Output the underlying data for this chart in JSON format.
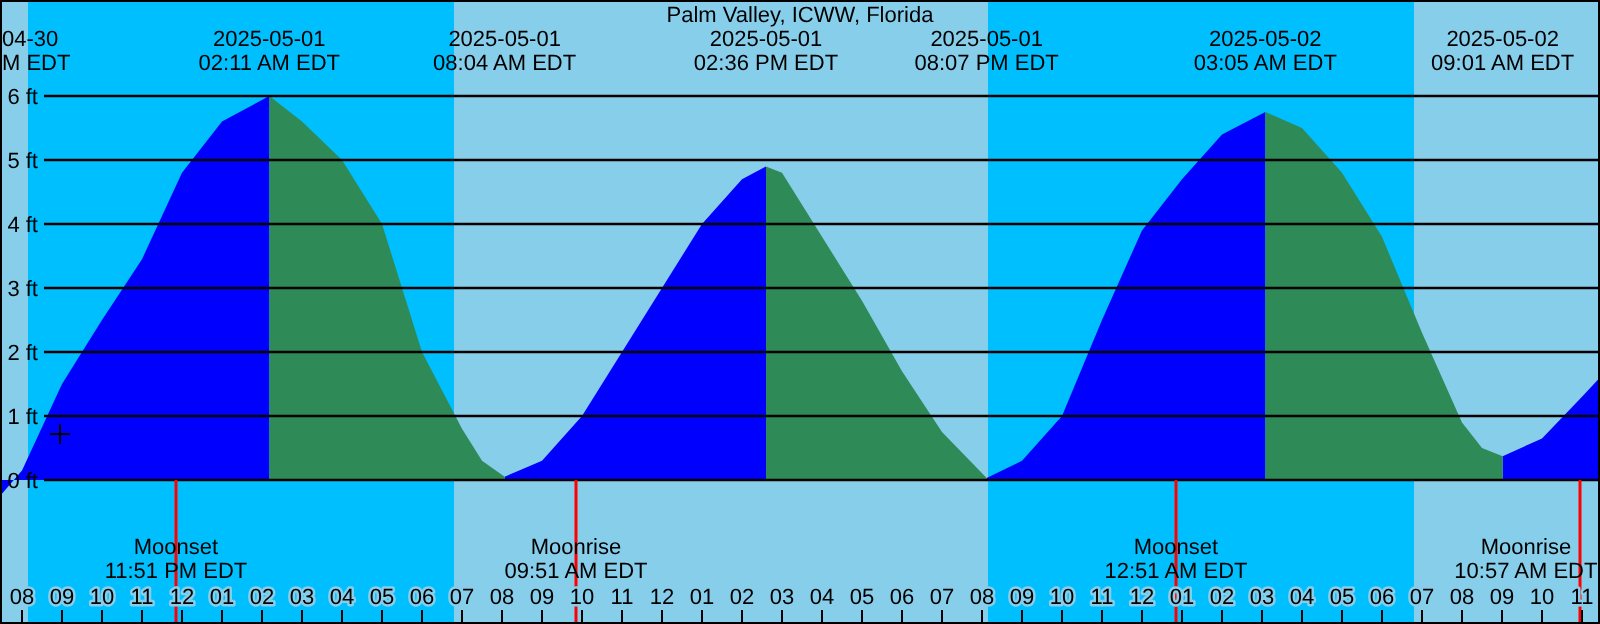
{
  "chart_data": {
    "type": "area",
    "title": "Palm Valley, ICWW, Florida",
    "x": [
      "2025-04-30T19:27",
      "2025-04-30T20:00",
      "2025-04-30T21:00",
      "2025-04-30T22:00",
      "2025-04-30T23:00",
      "2025-05-01T00:00",
      "2025-05-01T01:00",
      "2025-05-01T02:11",
      "2025-05-01T03:00",
      "2025-05-01T04:00",
      "2025-05-01T05:00",
      "2025-05-01T06:00",
      "2025-05-01T07:00",
      "2025-05-01T07:30",
      "2025-05-01T08:04",
      "2025-05-01T09:00",
      "2025-05-01T10:00",
      "2025-05-01T11:00",
      "2025-05-01T12:00",
      "2025-05-01T13:00",
      "2025-05-01T14:00",
      "2025-05-01T14:36",
      "2025-05-01T15:00",
      "2025-05-01T16:00",
      "2025-05-01T17:00",
      "2025-05-01T18:00",
      "2025-05-01T19:00",
      "2025-05-01T20:07",
      "2025-05-01T21:00",
      "2025-05-01T22:00",
      "2025-05-01T23:00",
      "2025-05-02T00:00",
      "2025-05-02T01:00",
      "2025-05-02T02:00",
      "2025-05-02T03:05",
      "2025-05-02T04:00",
      "2025-05-02T05:00",
      "2025-05-02T06:00",
      "2025-05-02T07:00",
      "2025-05-02T08:00",
      "2025-05-02T08:30",
      "2025-05-02T09:01",
      "2025-05-02T10:00",
      "2025-05-02T11:00",
      "2025-05-02T11:27"
    ],
    "series": [
      {
        "color": "#0000ff",
        "values": [
          -0.25,
          0.15,
          1.5,
          2.5,
          3.45,
          4.8,
          5.6,
          6.0,
          null,
          null,
          null,
          null,
          null,
          null,
          0.05,
          0.3,
          1.0,
          2.0,
          3.0,
          4.0,
          4.7,
          4.9,
          null,
          null,
          null,
          null,
          null,
          0.03,
          0.3,
          1.0,
          2.5,
          3.9,
          4.7,
          5.4,
          5.75,
          null,
          null,
          null,
          null,
          null,
          null,
          0.37,
          0.65,
          1.3,
          1.6
        ]
      },
      {
        "color": "#2e8b57",
        "values": [
          null,
          null,
          null,
          null,
          null,
          null,
          null,
          6.0,
          5.6,
          5.0,
          4.0,
          2.0,
          0.8,
          0.3,
          0.05,
          null,
          null,
          null,
          null,
          null,
          null,
          4.9,
          4.8,
          3.8,
          2.8,
          1.7,
          0.75,
          0.03,
          null,
          null,
          null,
          null,
          null,
          null,
          5.75,
          5.5,
          4.8,
          3.8,
          2.3,
          0.9,
          0.5,
          0.37,
          null,
          null,
          null
        ]
      }
    ],
    "xlim": [
      "2025-04-30T19:27",
      "2025-05-02T11:27"
    ],
    "xticks": [
      {
        "value": "2025-04-30T20:00",
        "label": "08"
      },
      {
        "value": "2025-04-30T21:00",
        "label": "09"
      },
      {
        "value": "2025-04-30T22:00",
        "label": "10"
      },
      {
        "value": "2025-04-30T23:00",
        "label": "11"
      },
      {
        "value": "2025-05-01T00:00",
        "label": "12"
      },
      {
        "value": "2025-05-01T01:00",
        "label": "01"
      },
      {
        "value": "2025-05-01T02:00",
        "label": "02"
      },
      {
        "value": "2025-05-01T03:00",
        "label": "03"
      },
      {
        "value": "2025-05-01T04:00",
        "label": "04"
      },
      {
        "value": "2025-05-01T05:00",
        "label": "05"
      },
      {
        "value": "2025-05-01T06:00",
        "label": "06"
      },
      {
        "value": "2025-05-01T07:00",
        "label": "07"
      },
      {
        "value": "2025-05-01T08:00",
        "label": "08"
      },
      {
        "value": "2025-05-01T09:00",
        "label": "09"
      },
      {
        "value": "2025-05-01T10:00",
        "label": "10"
      },
      {
        "value": "2025-05-01T11:00",
        "label": "11"
      },
      {
        "value": "2025-05-01T12:00",
        "label": "12"
      },
      {
        "value": "2025-05-01T13:00",
        "label": "01"
      },
      {
        "value": "2025-05-01T14:00",
        "label": "02"
      },
      {
        "value": "2025-05-01T15:00",
        "label": "03"
      },
      {
        "value": "2025-05-01T16:00",
        "label": "04"
      },
      {
        "value": "2025-05-01T17:00",
        "label": "05"
      },
      {
        "value": "2025-05-01T18:00",
        "label": "06"
      },
      {
        "value": "2025-05-01T19:00",
        "label": "07"
      },
      {
        "value": "2025-05-01T20:00",
        "label": "08"
      },
      {
        "value": "2025-05-01T21:00",
        "label": "09"
      },
      {
        "value": "2025-05-01T22:00",
        "label": "10"
      },
      {
        "value": "2025-05-01T23:00",
        "label": "11"
      },
      {
        "value": "2025-05-02T00:00",
        "label": "12"
      },
      {
        "value": "2025-05-02T01:00",
        "label": "01"
      },
      {
        "value": "2025-05-02T02:00",
        "label": "02"
      },
      {
        "value": "2025-05-02T03:00",
        "label": "03"
      },
      {
        "value": "2025-05-02T04:00",
        "label": "04"
      },
      {
        "value": "2025-05-02T05:00",
        "label": "05"
      },
      {
        "value": "2025-05-02T06:00",
        "label": "06"
      },
      {
        "value": "2025-05-02T07:00",
        "label": "07"
      },
      {
        "value": "2025-05-02T08:00",
        "label": "08"
      },
      {
        "value": "2025-05-02T09:00",
        "label": "09"
      },
      {
        "value": "2025-05-02T10:00",
        "label": "10"
      },
      {
        "value": "2025-05-02T11:00",
        "label": "11"
      }
    ],
    "x2lim": [
      "2025-04-30T19:27",
      "2025-05-02T11:27"
    ],
    "x2ticks": [
      {
        "value": "2025-05-01T02:11",
        "label": "2025-05-01\n02:11 AM EDT"
      },
      {
        "value": "2025-05-01T08:04",
        "label": "2025-05-01\n08:04 AM EDT"
      },
      {
        "value": "2025-05-01T14:36",
        "label": "2025-05-01\n02:36 PM EDT"
      },
      {
        "value": "2025-05-01T20:07",
        "label": "2025-05-01\n08:07 PM EDT"
      },
      {
        "value": "2025-05-02T03:05",
        "label": "2025-05-02\n03:05 AM EDT"
      },
      {
        "value": "2025-05-02T09:01",
        "label": "2025-05-02\n09:01 AM EDT"
      }
    ],
    "ylim": [
      -2.25,
      7.5
    ],
    "yticks": [
      {
        "value": 0,
        "label": "0 ft"
      },
      {
        "value": 1,
        "label": "1 ft"
      },
      {
        "value": 2,
        "label": "2 ft"
      },
      {
        "value": 3,
        "label": "3 ft"
      },
      {
        "value": 4,
        "label": "4 ft"
      },
      {
        "value": 5,
        "label": "5 ft"
      },
      {
        "value": 6,
        "label": "6 ft"
      }
    ],
    "grid": "y",
    "bands": [
      {
        "axis": "x",
        "from": "2025-04-30T20:09",
        "to": "2025-05-01T06:48",
        "color": "#00bfff"
      },
      {
        "axis": "x",
        "from": "2025-05-01T20:09",
        "to": "2025-05-02T06:48",
        "color": "#00bfff"
      }
    ],
    "ref_lines": [
      {
        "axis": "x",
        "value": "2025-04-30T23:51",
        "label": "Moonset\n11:51 PM EDT",
        "color": "#ff0000"
      },
      {
        "axis": "x",
        "value": "2025-05-01T09:51",
        "label": "Moonrise\n09:51 AM EDT",
        "color": "#ff0000"
      },
      {
        "axis": "x",
        "value": "2025-05-02T00:51",
        "label": "Moonset\n12:51 AM EDT",
        "color": "#ff0000"
      },
      {
        "axis": "x",
        "value": "2025-05-02T10:57",
        "label": "Moonrise\n10:57 AM EDT",
        "color": "#ff0000"
      }
    ],
    "annotations": [
      "04-30\nM EDT"
    ]
  }
}
